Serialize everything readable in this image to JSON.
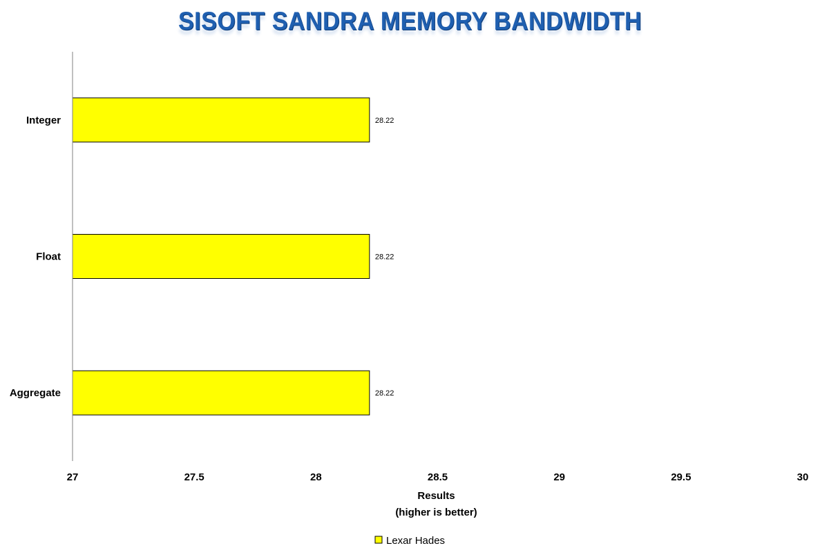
{
  "chart_data": {
    "type": "bar",
    "orientation": "horizontal",
    "title": "SISOFT SANDRA MEMORY BANDWIDTH",
    "categories": [
      "Integer",
      "Float",
      "Aggregate"
    ],
    "series": [
      {
        "name": "Lexar Hades",
        "values": [
          28.22,
          28.22,
          28.22
        ],
        "color": "#ffff00"
      }
    ],
    "data_labels": [
      "28.22",
      "28.22",
      "28.22"
    ],
    "xlim": [
      27,
      30
    ],
    "x_ticks": [
      "27",
      "27.5",
      "28",
      "28.5",
      "29",
      "29.5",
      "30"
    ],
    "xlabel_lines": [
      "Results",
      "(higher is better)"
    ],
    "ylabel": "",
    "grid": false,
    "legend_position": "bottom"
  }
}
